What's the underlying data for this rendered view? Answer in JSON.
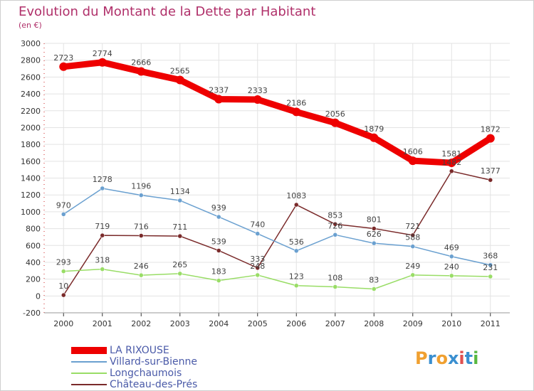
{
  "title": "Evolution du Montant de la Dette par Habitant",
  "subtitle": "(en €)",
  "logo": {
    "text": "Proxiti",
    "colors": [
      "#f0a030",
      "#3a8fd0",
      "#f0a030",
      "#3a8fd0",
      "#e05050",
      "#3a8fd0",
      "#58b840"
    ]
  },
  "chart_data": {
    "type": "line",
    "x": [
      "2000",
      "2001",
      "2002",
      "2003",
      "2004",
      "2005",
      "2006",
      "2007",
      "2008",
      "2009",
      "2010",
      "2011"
    ],
    "ylim": [
      -200,
      3000
    ],
    "yticks": [
      -200,
      0,
      200,
      400,
      600,
      800,
      1000,
      1200,
      1400,
      1600,
      1800,
      2000,
      2200,
      2400,
      2600,
      2800,
      3000
    ],
    "grid": true,
    "legend_position": "bottom-left",
    "series": [
      {
        "name": "LA RIXOUSE",
        "color": "#ee0000",
        "values": [
          2723,
          2774,
          2666,
          2565,
          2337,
          2333,
          2186,
          2056,
          1879,
          1606,
          1581,
          1872
        ]
      },
      {
        "name": "Villard-sur-Bienne",
        "color": "#6aa0d0",
        "values": [
          970,
          1278,
          1196,
          1134,
          939,
          740,
          536,
          726,
          626,
          588,
          469,
          368
        ]
      },
      {
        "name": "Longchaumois",
        "color": "#99dd66",
        "values": [
          293,
          318,
          246,
          265,
          183,
          248,
          123,
          108,
          83,
          249,
          240,
          231
        ]
      },
      {
        "name": "Château-des-Prés",
        "color": "#7a2a2a",
        "values": [
          10,
          719,
          716,
          711,
          539,
          333,
          1083,
          853,
          801,
          721,
          1482,
          1377
        ]
      }
    ]
  }
}
